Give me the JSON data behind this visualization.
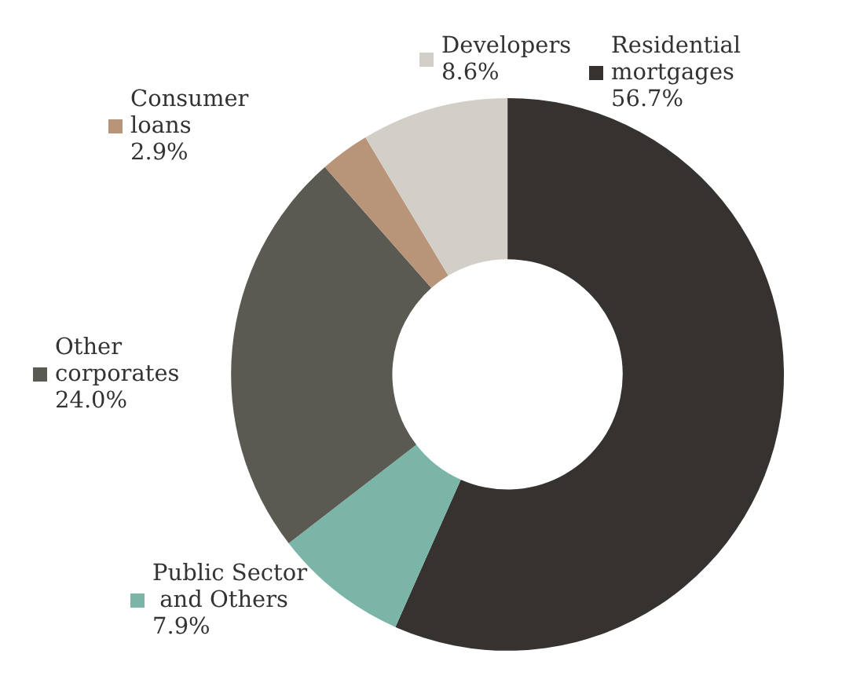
{
  "chart_data": {
    "type": "donut",
    "categories": [
      "Residential mortgages",
      "Public Sector and Others",
      "Other corporates",
      "Consumer loans",
      "Developers"
    ],
    "values": [
      56.7,
      7.9,
      24.0,
      2.9,
      8.6
    ],
    "value_labels": [
      "56.7%",
      "7.9%",
      "24.0%",
      "2.9%",
      "8.6%"
    ],
    "colors": [
      "#353230",
      "#7ab5a8",
      "#5b5a52",
      "#b89478",
      "#d2cfc8"
    ],
    "legend": "left"
  }
}
